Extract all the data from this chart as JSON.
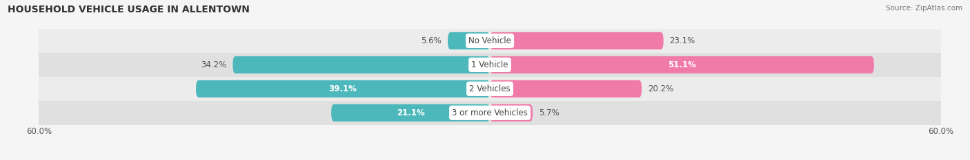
{
  "title": "HOUSEHOLD VEHICLE USAGE IN ALLENTOWN",
  "source": "Source: ZipAtlas.com",
  "categories": [
    "No Vehicle",
    "1 Vehicle",
    "2 Vehicles",
    "3 or more Vehicles"
  ],
  "owner_values": [
    5.6,
    34.2,
    39.1,
    21.1
  ],
  "renter_values": [
    23.1,
    51.1,
    20.2,
    5.7
  ],
  "owner_color": "#4db8bc",
  "renter_color": "#f07aaa",
  "axis_limit": 60.0,
  "bg_color": "#f5f5f5",
  "row_colors": [
    "#ececec",
    "#e0e0e0",
    "#ececec",
    "#e0e0e0"
  ],
  "title_fontsize": 10,
  "label_fontsize": 8.5,
  "tick_fontsize": 8.5,
  "bar_height": 0.72,
  "owner_text_colors": [
    "#555555",
    "#555555",
    "#ffffff",
    "#ffffff"
  ],
  "renter_text_colors": [
    "#555555",
    "#ffffff",
    "#555555",
    "#555555"
  ]
}
